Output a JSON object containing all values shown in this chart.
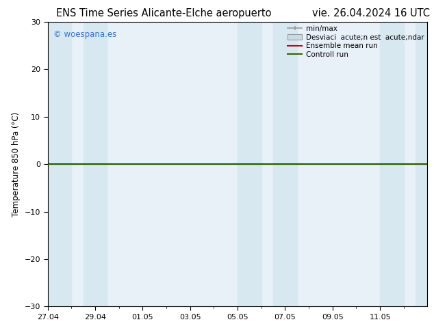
{
  "title_left": "ENS Time Series Alicante-Elche aeropuerto",
  "title_right": "vie. 26.04.2024 16 UTC",
  "ylabel": "Temperature 850 hPa (°C)",
  "ylim": [
    -30,
    30
  ],
  "yticks": [
    -30,
    -20,
    -10,
    0,
    10,
    20,
    30
  ],
  "xlim_start": 0,
  "xlim_end": 16,
  "xtick_labels": [
    "27.04",
    "29.04",
    "01.05",
    "03.05",
    "05.05",
    "07.05",
    "09.05",
    "11.05"
  ],
  "xtick_positions": [
    0,
    2,
    4,
    6,
    8,
    10,
    12,
    14
  ],
  "blue_bands": [
    [
      0.0,
      1.0
    ],
    [
      1.5,
      2.5
    ],
    [
      8.0,
      9.0
    ],
    [
      9.5,
      10.5
    ],
    [
      14.0,
      15.0
    ],
    [
      15.5,
      16.0
    ]
  ],
  "zero_line_y": 0,
  "ensemble_mean_color": "#cc0000",
  "control_run_color": "#336600",
  "minmax_color": "#aaaaaa",
  "band_color": "#d8e8f0",
  "plot_bg_color": "#e8f0f8",
  "background_color": "#ffffff",
  "copyright_text": "© woespana.es",
  "copyright_color": "#3377cc",
  "legend_entry_0": "min/max",
  "legend_entry_1": "Desviaci  acute;n est  acute;ndar",
  "legend_entry_2": "Ensemble mean run",
  "legend_entry_3": "Controll run",
  "title_fontsize": 10.5,
  "axis_fontsize": 8.5,
  "tick_fontsize": 8,
  "legend_fontsize": 7.5
}
